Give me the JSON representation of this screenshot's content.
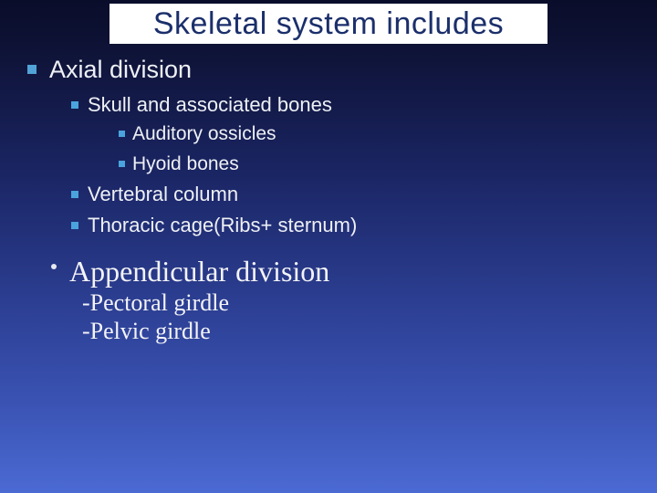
{
  "title": "Skeletal system includes",
  "colors": {
    "title_text": "#1b2f6b",
    "title_bg": "#ffffff",
    "body_text": "#eef0f5",
    "bullet_square": "#51a2d6",
    "bg_top": "#0a0d2a",
    "bg_bottom": "#4b6ad3"
  },
  "fonts": {
    "title_family": "Trebuchet MS",
    "body_family": "Verdana",
    "serif_family": "Times New Roman",
    "title_size_pt": 34,
    "h1_size_pt": 27,
    "b1_size_pt": 22,
    "b2_size_pt": 21,
    "app_size_pt": 32,
    "sub_size_pt": 26
  },
  "axial": {
    "heading": "Axial division",
    "items": {
      "skull": "Skull and associated bones",
      "skull_sub": {
        "auditory": "Auditory ossicles",
        "hyoid": "Hyoid bones"
      },
      "vertebral": "Vertebral column",
      "thoracic": "Thoracic cage(Ribs+ sternum)"
    }
  },
  "appendicular": {
    "heading": "Appendicular division",
    "items": {
      "pectoral": "-Pectoral girdle",
      "pelvic": "-Pelvic girdle"
    }
  }
}
